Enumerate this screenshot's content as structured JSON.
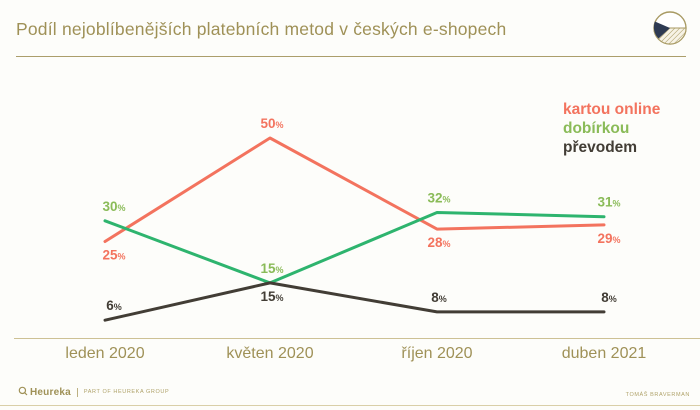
{
  "header": {
    "title": "Podíl nejoblíbenějších platebních metod v českých e-shopech"
  },
  "chart_data": {
    "type": "line",
    "title": "Podíl nejoblíbenějších platebních metod v českých e-shopech",
    "categories": [
      "leden 2020",
      "květen 2020",
      "říjen 2020",
      "duben 2021"
    ],
    "series": [
      {
        "name": "kartou online",
        "values": [
          25,
          50,
          28,
          29
        ],
        "color": "#f3735e",
        "label_color": "#f3735e",
        "label_positions": [
          "below",
          "above",
          "below",
          "below"
        ]
      },
      {
        "name": "dobírkou",
        "values": [
          30,
          15,
          32,
          31
        ],
        "color": "#2eb46e",
        "label_color": "#8abb58",
        "label_positions": [
          "above",
          "above",
          "above",
          "above"
        ]
      },
      {
        "name": "převodem",
        "values": [
          6,
          15,
          8,
          8
        ],
        "color": "#423d35",
        "label_color": "#423d35",
        "label_positions": [
          "above",
          "below",
          "above",
          "above"
        ]
      }
    ],
    "unit": "%",
    "ylim": [
      0,
      55
    ],
    "grid": false,
    "legend_position": "top-right",
    "data_labels": true
  },
  "footer": {
    "brand": "Heureka",
    "brand_suffix": "PART OF HEUREKA GROUP",
    "note": "TOMÁŠ BRAVERMAN"
  },
  "colors": {
    "title_gold": "#9f9157",
    "rule_gold": "#ab9e6b",
    "axis_rule": "#cdc194",
    "background": "#fdfdfa",
    "icon_navy": "#2e3a52"
  }
}
